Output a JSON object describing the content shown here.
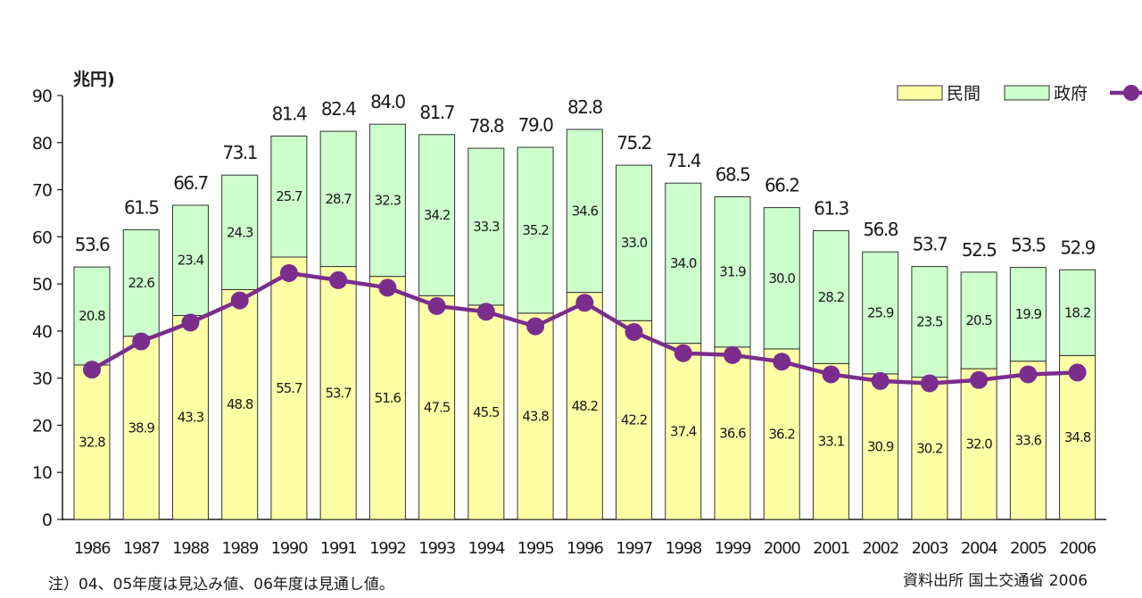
{
  "chart_data": {
    "type": "bar",
    "stacked": true,
    "unit_label": "兆円)",
    "ylim": [
      0,
      90
    ],
    "yticks": [
      0,
      10,
      20,
      30,
      40,
      50,
      60,
      70,
      80,
      90
    ],
    "grid": false,
    "legend_position": "top-right",
    "categories": [
      "1986",
      "1987",
      "1988",
      "1989",
      "1990",
      "1991",
      "1992",
      "1993",
      "1994",
      "1995",
      "1996",
      "1997",
      "1998",
      "1999",
      "2000",
      "2001",
      "2002",
      "2003",
      "2004",
      "2005",
      "2006"
    ],
    "series": [
      {
        "name": "民間",
        "color": "#ffffa6",
        "values": [
          32.8,
          38.9,
          43.3,
          48.8,
          55.7,
          53.7,
          51.6,
          47.5,
          45.5,
          43.8,
          48.2,
          42.2,
          37.4,
          36.6,
          36.2,
          33.1,
          30.9,
          30.2,
          32.0,
          33.6,
          34.8
        ],
        "labels": [
          "32.8",
          "38.9",
          "43.3",
          "48.8",
          "55.7",
          "53.7",
          "51.6",
          "47.5",
          "45.5",
          "43.8",
          "48.2",
          "42.2",
          "37.4",
          "36.6",
          "36.2",
          "33.1",
          "30.9",
          "30.2",
          "32.0",
          "33.6",
          "34.8"
        ]
      },
      {
        "name": "政府",
        "color": "#ccffcc",
        "values": [
          20.8,
          22.6,
          23.4,
          24.3,
          25.7,
          28.7,
          32.3,
          34.2,
          33.3,
          35.2,
          34.6,
          33.0,
          34.0,
          31.9,
          30.0,
          28.2,
          25.9,
          23.5,
          20.5,
          19.9,
          18.2
        ],
        "labels": [
          "20.8",
          "22.6",
          "23.4",
          "24.3",
          "25.7",
          "28.7",
          "32.3",
          "34.2",
          "33.3",
          "35.2",
          "34.6",
          "33.0",
          "34.0",
          "31.9",
          "30.0",
          "28.2",
          "25.9",
          "23.5",
          "20.5",
          "19.9",
          "18.2"
        ]
      }
    ],
    "totals": [
      53.6,
      61.5,
      66.7,
      73.1,
      81.4,
      82.4,
      84.0,
      81.7,
      78.8,
      79.0,
      82.8,
      75.2,
      71.4,
      68.5,
      66.2,
      61.3,
      56.8,
      53.7,
      52.5,
      53.5,
      52.9
    ],
    "total_labels": [
      "53.6",
      "61.5",
      "66.7",
      "73.1",
      "81.4",
      "82.4",
      "84.0",
      "81.7",
      "78.8",
      "79.0",
      "82.8",
      "75.2",
      "71.4",
      "68.5",
      "66.2",
      "61.3",
      "56.8",
      "53.7",
      "52.5",
      "53.5",
      "52.9"
    ],
    "line": {
      "color": "#7b2d8e",
      "values": [
        31.8,
        37.8,
        41.8,
        46.5,
        52.3,
        50.8,
        49.2,
        45.3,
        44.1,
        41.0,
        46.0,
        39.8,
        35.3,
        34.9,
        33.5,
        30.8,
        29.4,
        28.9,
        29.6,
        30.8,
        31.2
      ]
    },
    "legend": [
      {
        "label": "民間",
        "swatch": "#ffffa6"
      },
      {
        "label": "政府",
        "swatch": "#ccffcc"
      },
      {
        "label": "",
        "swatch": "#7b2d8e",
        "kind": "line"
      }
    ]
  },
  "footer": {
    "note": "注）04、05年度は見込み値、06年度は見通し値。",
    "source": "資料出所 国土交通省 2006"
  }
}
